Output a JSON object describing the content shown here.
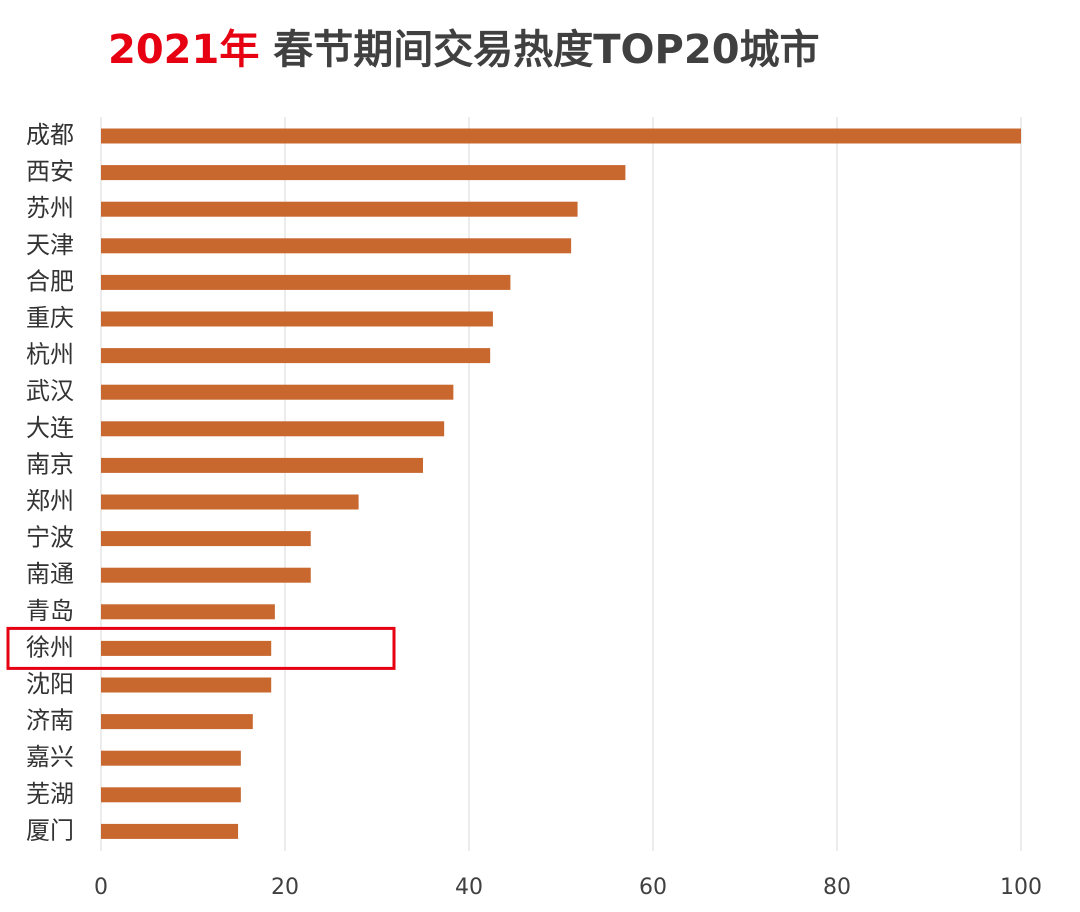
{
  "title": {
    "highlight": "2021年",
    "main": "春节期间交易热度TOP20城市"
  },
  "colors": {
    "bar": "#c8682f",
    "grid": "#d9d9d9",
    "highlight_box": "#e60012",
    "title_highlight": "#e60012",
    "title_main": "#404040"
  },
  "highlighted_category": "徐州",
  "chart_data": {
    "type": "bar",
    "orientation": "horizontal",
    "categories": [
      "成都",
      "西安",
      "苏州",
      "天津",
      "合肥",
      "重庆",
      "杭州",
      "武汉",
      "大连",
      "南京",
      "郑州",
      "宁波",
      "南通",
      "青岛",
      "徐州",
      "沈阳",
      "济南",
      "嘉兴",
      "芜湖",
      "厦门"
    ],
    "values": [
      100,
      57,
      51.8,
      51.1,
      44.5,
      42.6,
      42.3,
      38.3,
      37.3,
      35,
      28,
      22.8,
      22.8,
      18.9,
      18.5,
      18.5,
      16.5,
      15.2,
      15.2,
      14.9
    ],
    "xlim": [
      0,
      100
    ],
    "xticks": [
      "0",
      "20",
      "40",
      "60",
      "80",
      "100"
    ],
    "xlabel": "",
    "ylabel": "",
    "grid": "vertical",
    "legend": "none"
  }
}
